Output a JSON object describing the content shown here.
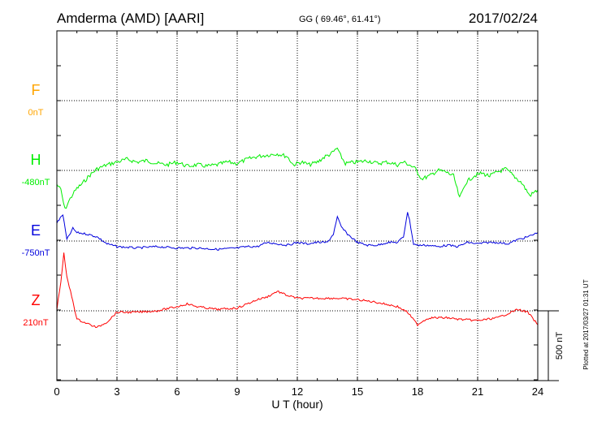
{
  "header": {
    "station": "Amderma (AMD)  [AARI]",
    "coords": "GG ( 69.46°,  61.41°)",
    "date": "2017/02/24"
  },
  "footer_note": "Plotted at 2017/03/27 01:31  UT",
  "scale_bar_label": "500 nT",
  "chart_data": {
    "type": "line",
    "title": "Amderma (AMD)  [AARI]",
    "xlabel": "U T (hour)",
    "ylabel": "",
    "xlim": [
      0,
      24
    ],
    "x_ticks": [
      0,
      3,
      6,
      9,
      12,
      15,
      18,
      21,
      24
    ],
    "grid": true,
    "scale_bar_nT": 500,
    "series": [
      {
        "name": "F",
        "baseline_label": "0nT",
        "color": "#ffa500",
        "x": [],
        "values": []
      },
      {
        "name": "H",
        "baseline_label": "-480nT",
        "color": "#00ee00",
        "x": [
          0,
          0.2,
          0.4,
          0.6,
          0.8,
          1.0,
          1.3,
          1.6,
          2.0,
          2.5,
          3.0,
          3.5,
          4.0,
          4.5,
          5.0,
          5.5,
          6.0,
          6.5,
          7.0,
          7.5,
          8.0,
          8.5,
          9.0,
          9.5,
          10.0,
          10.5,
          11.0,
          11.5,
          11.8,
          12.2,
          12.6,
          13.0,
          13.4,
          13.7,
          14.0,
          14.1,
          14.4,
          15.0,
          15.5,
          16.0,
          16.5,
          17.0,
          17.3,
          17.6,
          17.9,
          18.2,
          18.6,
          19.0,
          19.4,
          19.8,
          20.1,
          20.4,
          20.8,
          21.2,
          21.6,
          22.0,
          22.4,
          22.8,
          23.2,
          23.6,
          24.0
        ],
        "values": [
          -580,
          -620,
          -760,
          -700,
          -650,
          -610,
          -570,
          -520,
          -470,
          -440,
          -420,
          -400,
          -420,
          -410,
          -430,
          -440,
          -420,
          -450,
          -440,
          -450,
          -440,
          -420,
          -430,
          -400,
          -380,
          -370,
          -360,
          -380,
          -440,
          -420,
          -440,
          -420,
          -380,
          -360,
          -320,
          -360,
          -430,
          -420,
          -410,
          -430,
          -420,
          -440,
          -420,
          -440,
          -470,
          -540,
          -520,
          -480,
          -490,
          -520,
          -680,
          -570,
          -520,
          -500,
          -520,
          -490,
          -470,
          -520,
          -570,
          -660,
          -620
        ]
      },
      {
        "name": "E",
        "baseline_label": "-750nT",
        "color": "#0000dd",
        "x": [
          0,
          0.3,
          0.5,
          0.8,
          1.0,
          1.5,
          2.0,
          2.5,
          3.0,
          4.0,
          5.0,
          6.0,
          7.0,
          8.0,
          9.0,
          9.5,
          10.0,
          10.5,
          11.0,
          11.5,
          12.0,
          12.5,
          13.0,
          13.5,
          13.8,
          14.0,
          14.2,
          14.5,
          15.0,
          15.5,
          16.0,
          16.5,
          17.0,
          17.3,
          17.5,
          17.6,
          17.8,
          18.0,
          18.5,
          19.0,
          19.5,
          20.0,
          20.5,
          21.0,
          21.5,
          22.0,
          22.5,
          23.0,
          23.5,
          24.0
        ],
        "values": [
          -620,
          -560,
          -740,
          -660,
          -690,
          -700,
          -720,
          -770,
          -790,
          -800,
          -790,
          -800,
          -800,
          -810,
          -800,
          -790,
          -790,
          -760,
          -770,
          -780,
          -760,
          -770,
          -760,
          -760,
          -700,
          -580,
          -650,
          -700,
          -760,
          -780,
          -780,
          -760,
          -760,
          -720,
          -540,
          -600,
          -770,
          -780,
          -780,
          -790,
          -780,
          -790,
          -760,
          -770,
          -760,
          -760,
          -770,
          -740,
          -720,
          -690
        ]
      },
      {
        "name": "Z",
        "baseline_label": "210nT",
        "color": "#ff0000",
        "x": [
          0,
          0.2,
          0.35,
          0.5,
          0.8,
          1.0,
          1.5,
          2.0,
          2.5,
          3.0,
          4.0,
          5.0,
          6.0,
          6.5,
          7.0,
          8.0,
          9.0,
          10.0,
          10.5,
          11.0,
          11.5,
          12.0,
          13.0,
          14.0,
          15.0,
          16.0,
          17.0,
          17.5,
          18.0,
          18.3,
          18.6,
          19.0,
          19.5,
          20.0,
          21.0,
          22.0,
          23.0,
          23.5,
          24.0
        ],
        "values": [
          220,
          420,
          620,
          450,
          280,
          150,
          120,
          90,
          130,
          200,
          200,
          210,
          240,
          260,
          240,
          220,
          230,
          290,
          310,
          350,
          320,
          300,
          300,
          300,
          290,
          270,
          240,
          200,
          110,
          140,
          160,
          160,
          160,
          150,
          140,
          160,
          220,
          200,
          110
        ]
      }
    ]
  }
}
